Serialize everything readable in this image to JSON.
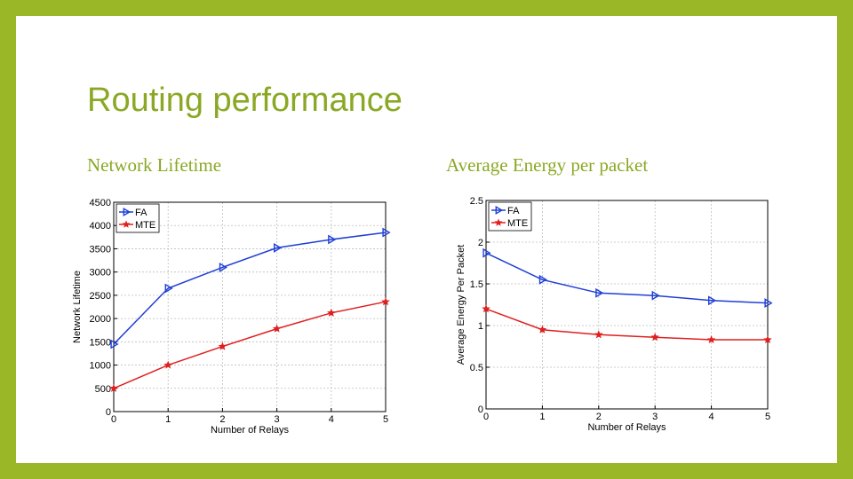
{
  "slide": {
    "title": "Routing performance",
    "subtitle_left": "Network Lifetime",
    "subtitle_right": "Average Energy per packet",
    "accent_color": "#9ab727",
    "title_color": "#8aa824"
  },
  "chart_data": [
    {
      "type": "line",
      "title": "Network Lifetime",
      "xlabel": "Number of Relays",
      "ylabel": "Network Lifetime",
      "x": [
        0,
        1,
        2,
        3,
        4,
        5
      ],
      "xlim": [
        0,
        5
      ],
      "ylim": [
        0,
        4500
      ],
      "xticks": [
        "0",
        "1",
        "2",
        "3",
        "4",
        "5"
      ],
      "yticks": [
        "0",
        "500",
        "1000",
        "1500",
        "2000",
        "2500",
        "3000",
        "3500",
        "4000",
        "4500"
      ],
      "ytick_values": [
        0,
        500,
        1000,
        1500,
        2000,
        2500,
        3000,
        3500,
        4000,
        4500
      ],
      "grid": true,
      "legend": "top-left",
      "series": [
        {
          "name": "FA",
          "color": "#1f3fd6",
          "marker": "triangle-right",
          "values": [
            1450,
            2650,
            3100,
            3520,
            3700,
            3850
          ]
        },
        {
          "name": "MTE",
          "color": "#e01f1f",
          "marker": "star",
          "values": [
            500,
            1000,
            1400,
            1780,
            2120,
            2360
          ]
        }
      ]
    },
    {
      "type": "line",
      "title": "Average Energy per packet",
      "xlabel": "Number of Relays",
      "ylabel": "Average Energy Per Packet",
      "x": [
        0,
        1,
        2,
        3,
        4,
        5
      ],
      "xlim": [
        0,
        5
      ],
      "ylim": [
        0,
        2.5
      ],
      "xticks": [
        "0",
        "1",
        "2",
        "3",
        "4",
        "5"
      ],
      "yticks": [
        "0",
        "0.5",
        "1",
        "1.5",
        "2",
        "2.5"
      ],
      "ytick_values": [
        0,
        0.5,
        1,
        1.5,
        2,
        2.5
      ],
      "grid": true,
      "legend": "top-left",
      "series": [
        {
          "name": "FA",
          "color": "#1f3fd6",
          "marker": "triangle-right",
          "values": [
            1.87,
            1.55,
            1.39,
            1.36,
            1.3,
            1.27
          ]
        },
        {
          "name": "MTE",
          "color": "#e01f1f",
          "marker": "star",
          "values": [
            1.2,
            0.95,
            0.89,
            0.86,
            0.83,
            0.83
          ]
        }
      ]
    }
  ]
}
